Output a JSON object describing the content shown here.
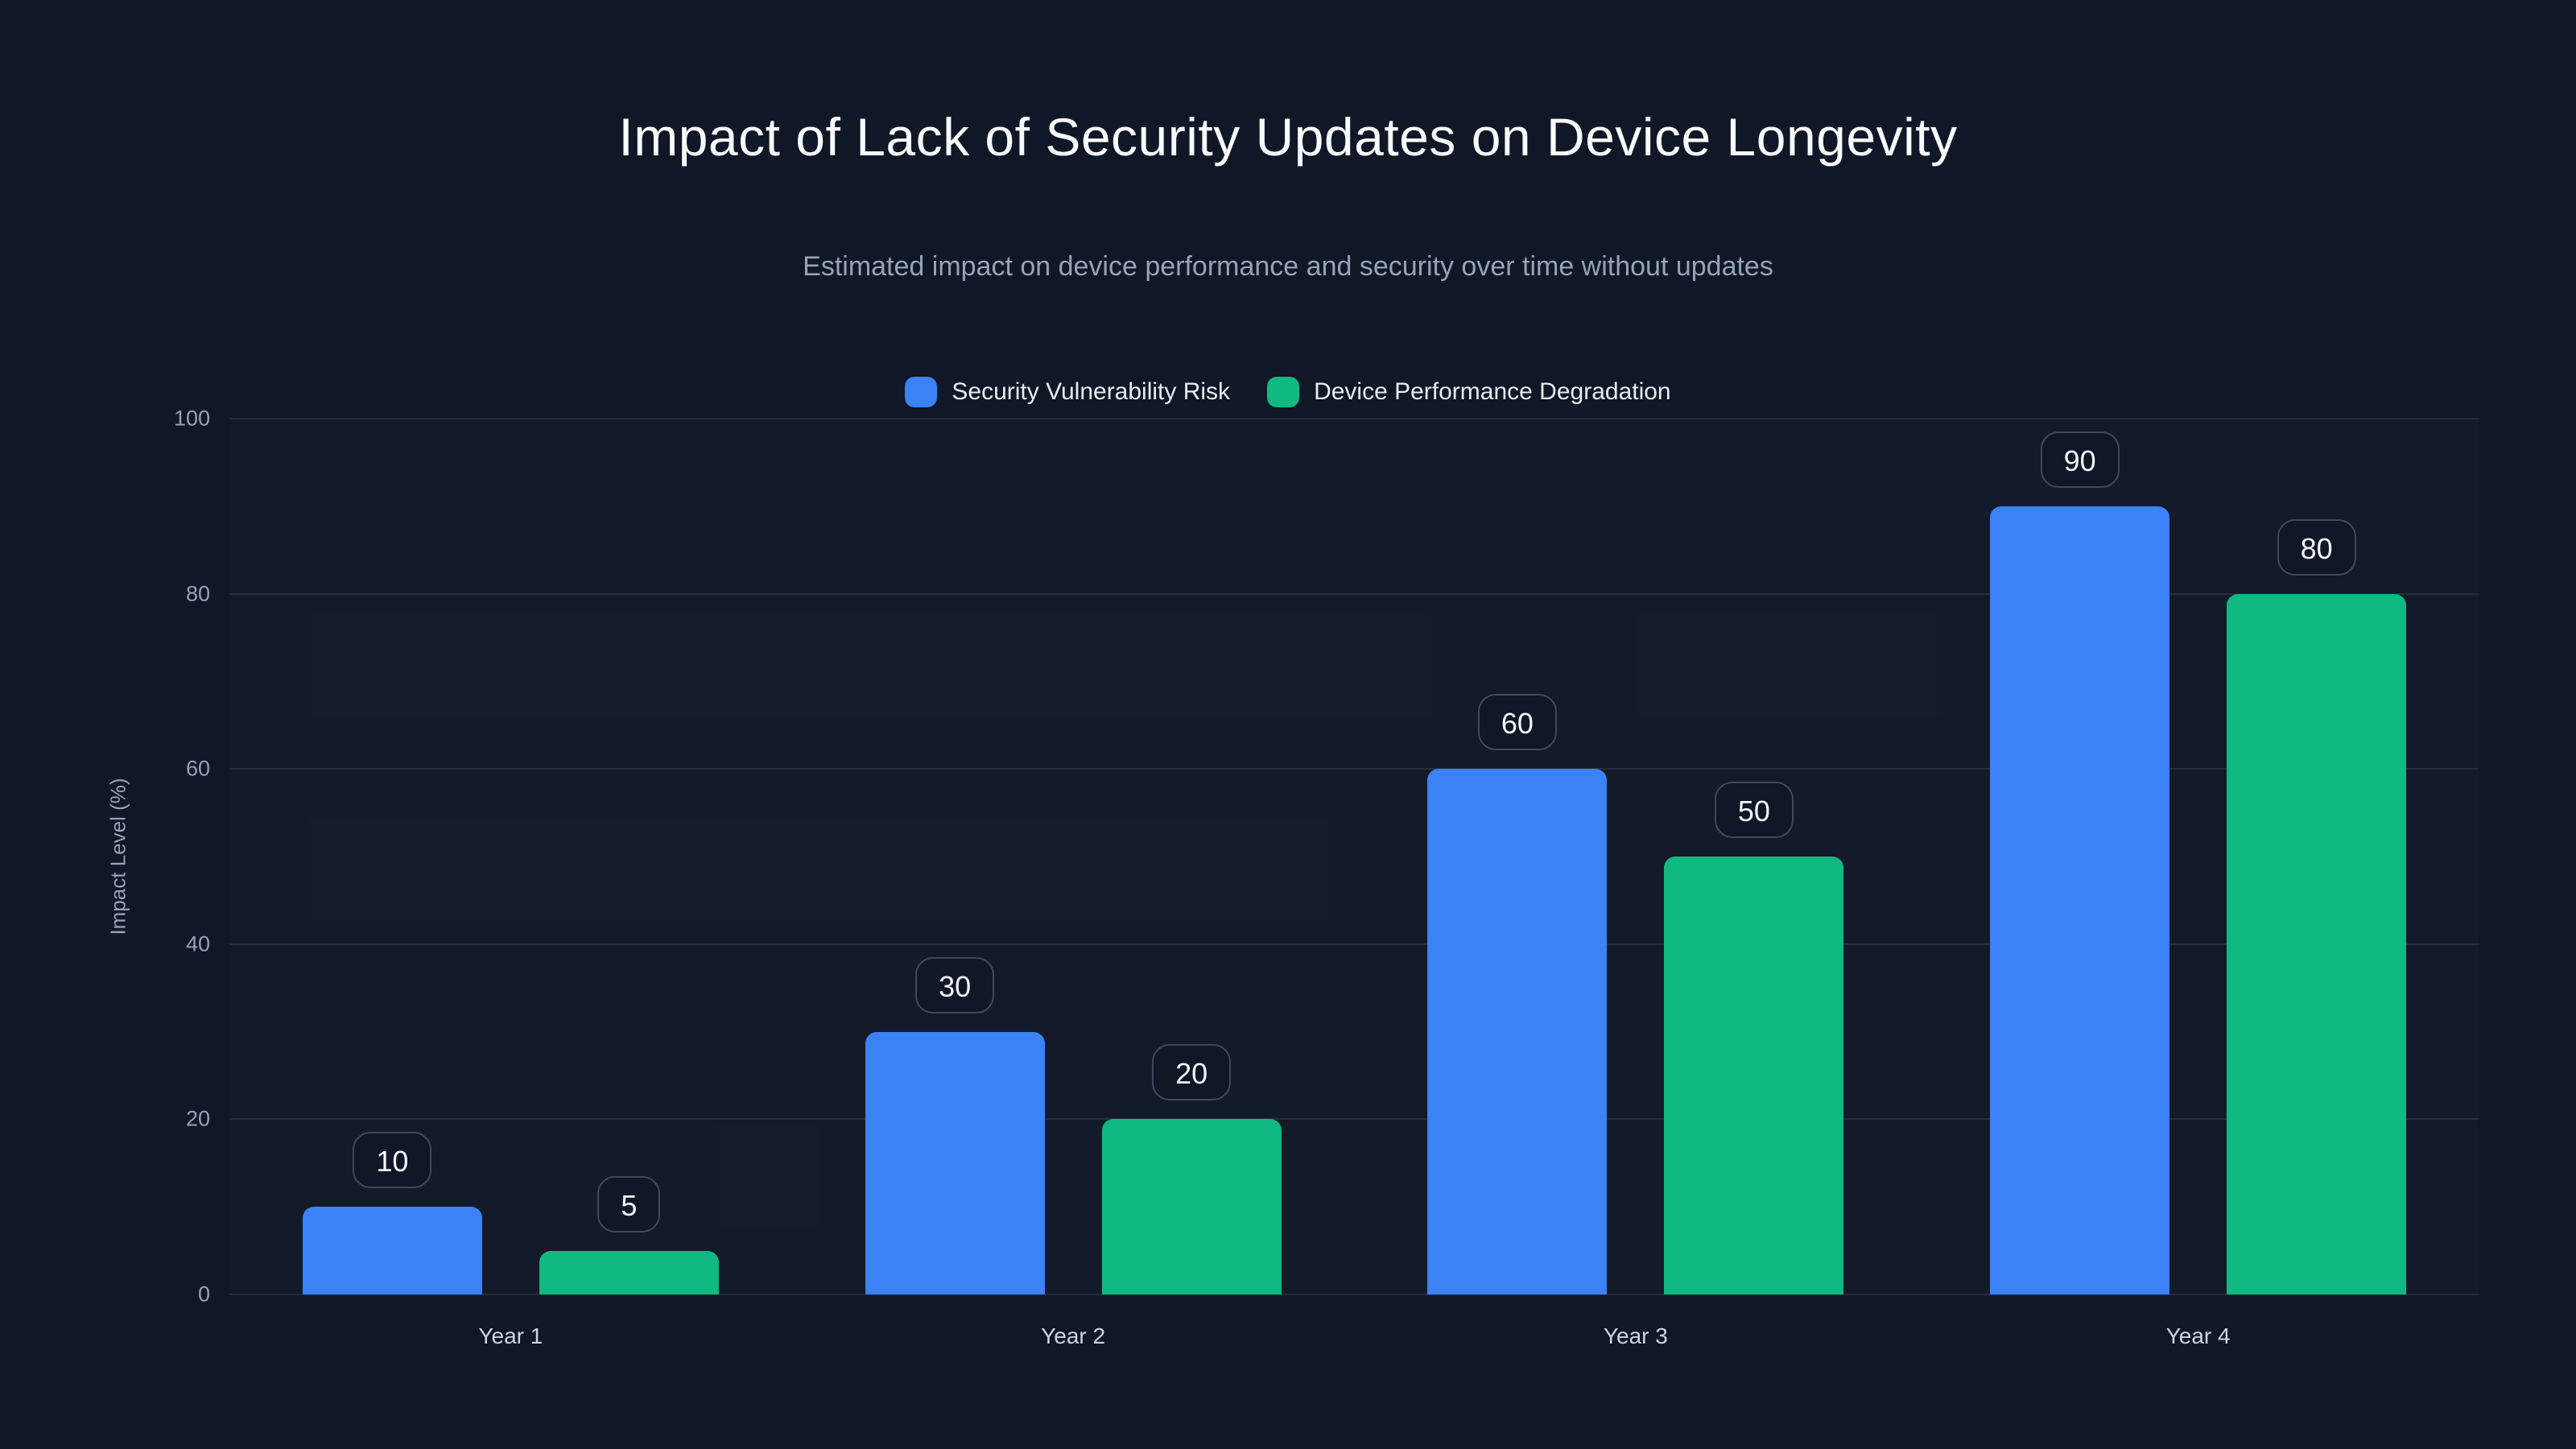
{
  "chart_data": {
    "type": "bar",
    "title": "Impact of Lack of Security Updates on Device Longevity",
    "subtitle": "Estimated impact on device performance and security over time without updates",
    "categories": [
      "Year 1",
      "Year 2",
      "Year 3",
      "Year 4"
    ],
    "series": [
      {
        "name": "Security Vulnerability Risk",
        "color": "#3b82f6",
        "values": [
          10,
          30,
          60,
          90
        ]
      },
      {
        "name": "Device Performance Degradation",
        "color": "#10b981",
        "values": [
          5,
          20,
          50,
          80
        ]
      }
    ],
    "xlabel": "",
    "ylabel": "Impact Level (%)",
    "ylim": [
      0,
      100
    ],
    "yticks": [
      0,
      20,
      40,
      60,
      80,
      100
    ],
    "grid": true,
    "legend_position": "top",
    "value_labels": true,
    "background_color": "#101726"
  }
}
